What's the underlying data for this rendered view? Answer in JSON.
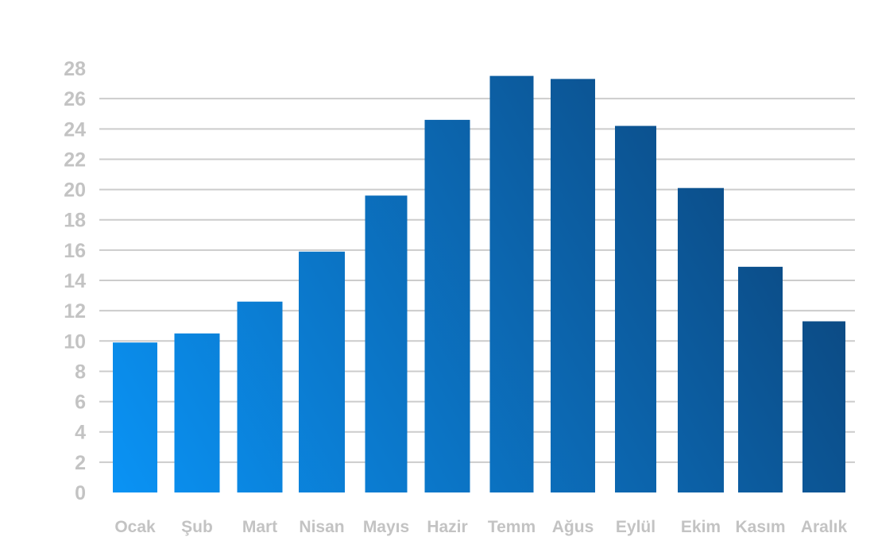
{
  "chart_data": {
    "type": "bar",
    "title": "",
    "xlabel": "",
    "ylabel": "",
    "categories": [
      "Ocak",
      "Şub",
      "Mart",
      "Nisan",
      "Mayıs",
      "Hazir",
      "Temm",
      "Ağus",
      "Eylül",
      "Ekim",
      "Kasım",
      "Aralık"
    ],
    "values": [
      9.9,
      10.5,
      12.6,
      15.9,
      19.6,
      24.6,
      27.5,
      27.3,
      24.2,
      20.1,
      14.9,
      11.3
    ],
    "ylim": [
      0,
      28
    ],
    "yticks": [
      "0",
      "2",
      "4",
      "6",
      "8",
      "10",
      "12",
      "14",
      "16",
      "18",
      "20",
      "22",
      "24",
      "26",
      "28"
    ],
    "grid": true,
    "legend": "none",
    "colors": {
      "bar_light": "#0a93f5",
      "bar_dark": "#0d3f72",
      "grid": "#cccccc",
      "label": "#c3c3c3"
    }
  }
}
